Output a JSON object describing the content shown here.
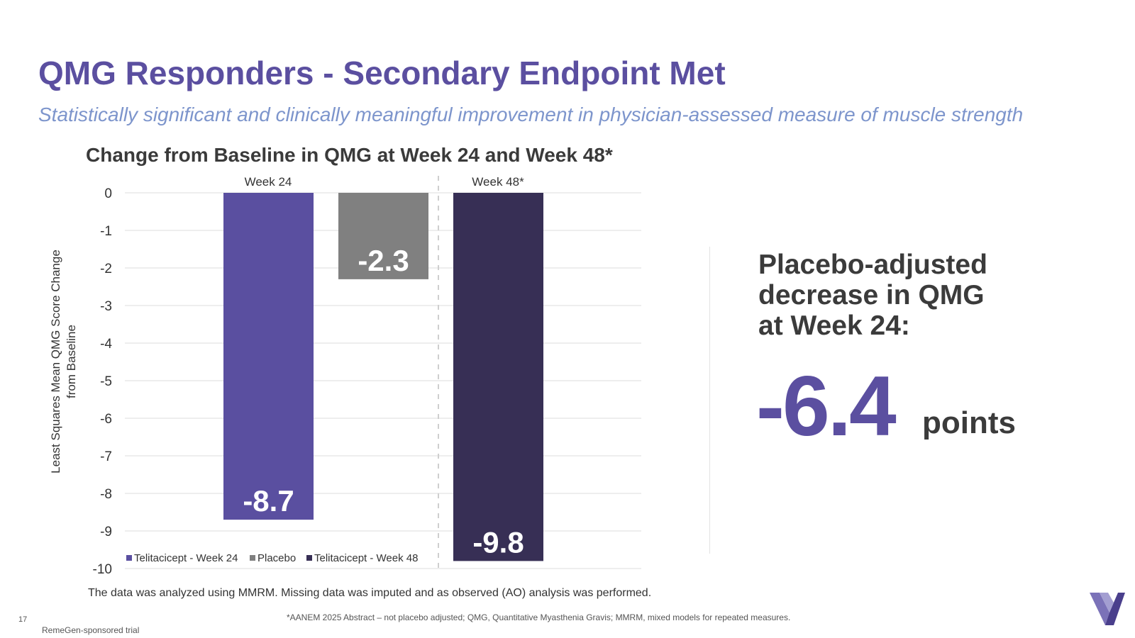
{
  "slide": {
    "title": "QMG Responders - Secondary Endpoint Met",
    "subtitle": "Statistically significant and clinically meaningful improvement in physician-assessed measure of muscle strength",
    "footnote_main": "The data was analyzed using MMRM. Missing data was imputed and as observed (AO) analysis was performed.",
    "footnote_small": "*AANEM 2025 Abstract – not placebo adjusted; QMG, Quantitative Myasthenia Gravis; MMRM, mixed models for repeated measures.",
    "sponsor": "RemeGen-sponsored trial",
    "page_number": "17",
    "logo_icon": "v-chevron-logo-icon"
  },
  "callout": {
    "line1": "Placebo-adjusted",
    "line2": "decrease in QMG",
    "line3": "at Week 24:",
    "value": "-6.4",
    "unit": "points",
    "value_color": "#5b4fa0"
  },
  "chart_data": {
    "type": "bar",
    "title": "Change from Baseline in QMG at Week 24 and Week 48*",
    "ylabel": "Least Squares Mean QMG Score Change from Baseline",
    "xlabel": "",
    "ylim": [
      -10,
      0
    ],
    "yticks": [
      "0",
      "-1",
      "-2",
      "-3",
      "-4",
      "-5",
      "-6",
      "-7",
      "-8",
      "-9",
      "-10"
    ],
    "grid": true,
    "groups": [
      "Week 24",
      "Week 48*"
    ],
    "bars": [
      {
        "name": "Telitacicept - Week 24",
        "group": "Week 24",
        "value": -8.7,
        "label": "-8.7",
        "color": "#5a4fa0"
      },
      {
        "name": "Placebo",
        "group": "Week 24",
        "value": -2.3,
        "label": "-2.3",
        "color": "#808080"
      },
      {
        "name": "Telitacicept - Week 48",
        "group": "Week 48*",
        "value": -9.8,
        "label": "-9.8",
        "color": "#372f55"
      }
    ],
    "legend": [
      {
        "label": "Telitacicept - Week 24",
        "color": "#5a4fa0"
      },
      {
        "label": "Placebo",
        "color": "#808080"
      },
      {
        "label": "Telitacicept - Week 48",
        "color": "#372f55"
      }
    ],
    "legend_position": "bottom-left"
  }
}
